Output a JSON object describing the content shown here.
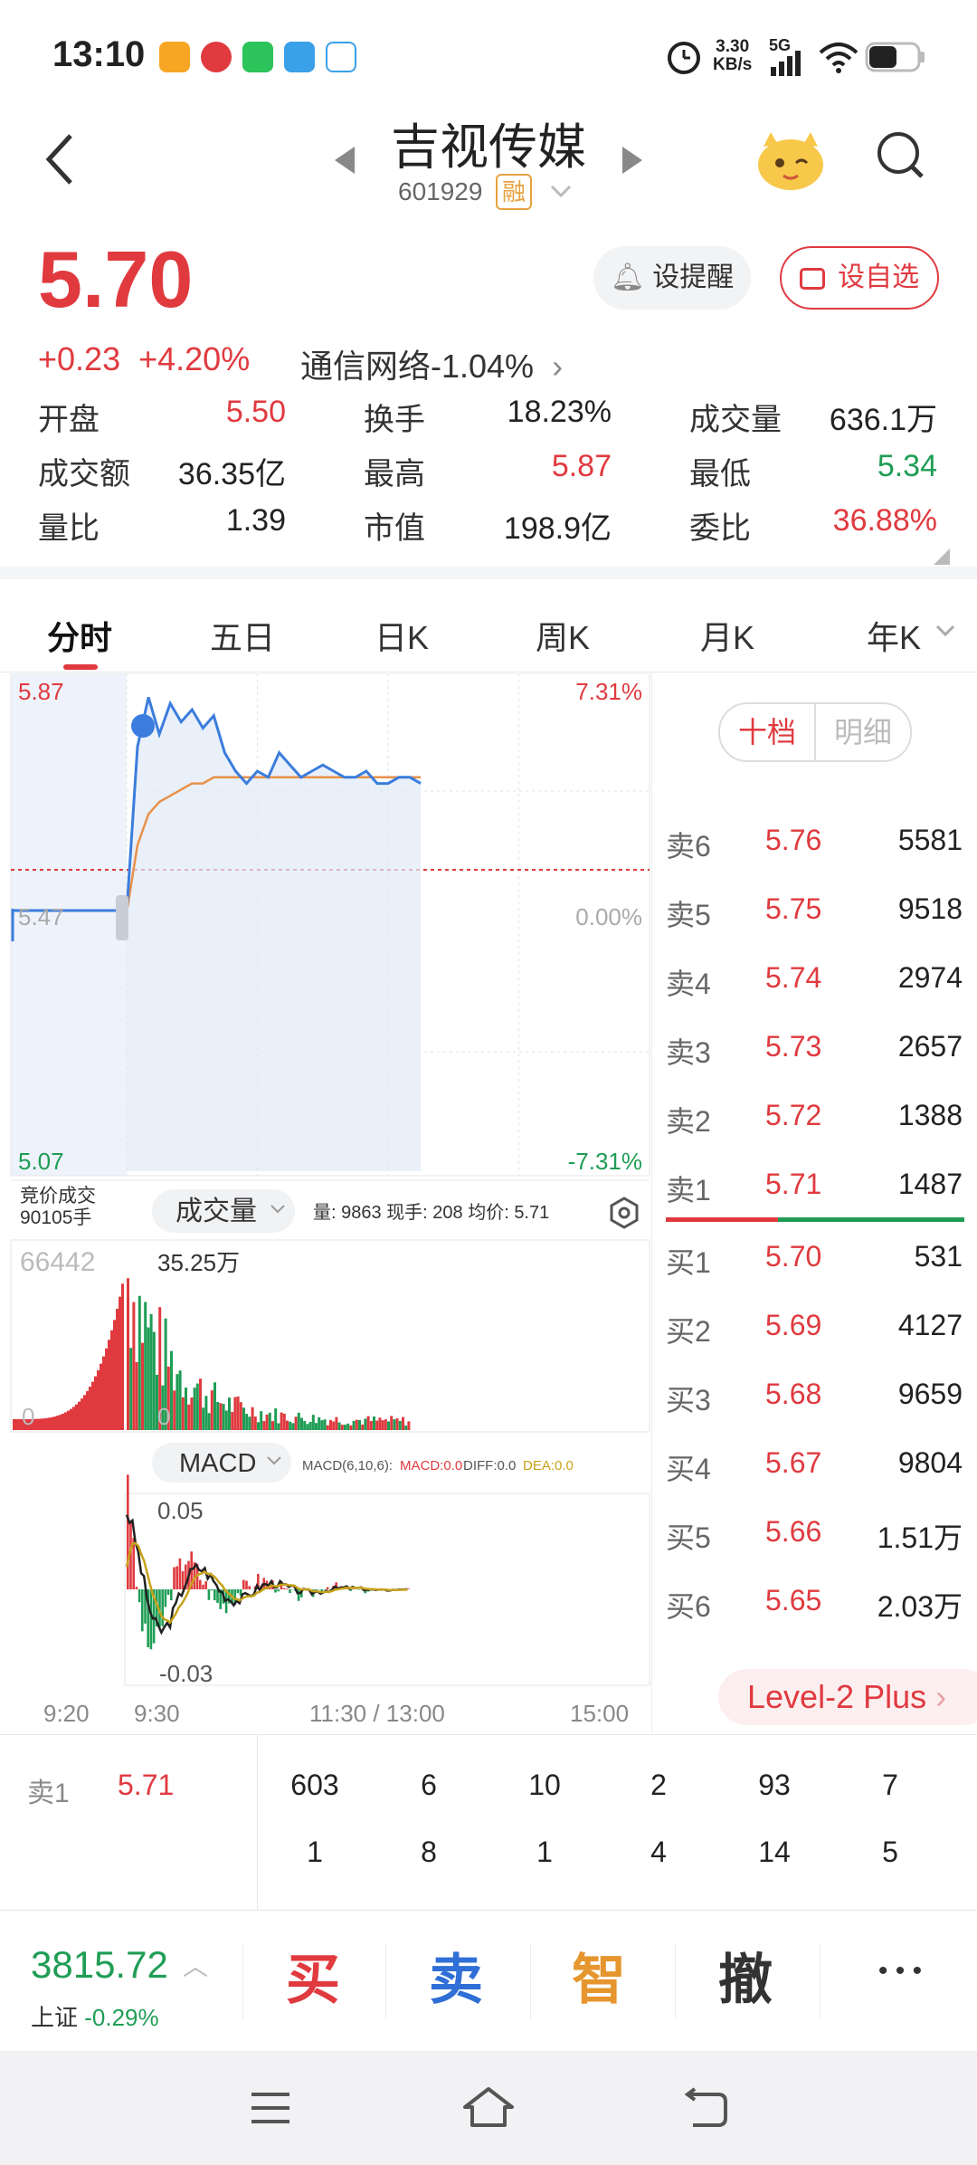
{
  "status_bar": {
    "time": "13:10",
    "net_speed_value": "3.30",
    "net_speed_unit": "KB/s",
    "network": "5G"
  },
  "header": {
    "stock_name": "吉视传媒",
    "stock_code": "601929",
    "margin_badge": "融"
  },
  "quote": {
    "price": "5.70",
    "change": "+0.23",
    "change_pct": "+4.20%",
    "sector": "通信网络-1.04%",
    "alert_label": "设提醒",
    "watch_label": "设自选",
    "stats": [
      {
        "label": "开盘",
        "value": "5.50",
        "color": "red"
      },
      {
        "label": "换手",
        "value": "18.23%",
        "color": "black"
      },
      {
        "label": "成交量",
        "value": "636.1万",
        "color": "black"
      },
      {
        "label": "成交额",
        "value": "36.35亿",
        "color": "black"
      },
      {
        "label": "最高",
        "value": "5.87",
        "color": "red"
      },
      {
        "label": "最低",
        "value": "5.34",
        "color": "green"
      },
      {
        "label": "量比",
        "value": "1.39",
        "color": "black"
      },
      {
        "label": "市值",
        "value": "198.9亿",
        "color": "black"
      },
      {
        "label": "委比",
        "value": "36.88%",
        "color": "red"
      }
    ]
  },
  "tabs": [
    "分时",
    "五日",
    "日K",
    "周K",
    "月K",
    "年K"
  ],
  "chart": {
    "price_top": "5.87",
    "price_mid": "5.47",
    "price_bottom": "5.07",
    "pct_top": "7.31%",
    "pct_mid": "0.00%",
    "pct_bottom": "-7.31%",
    "auction_label_1": "竞价成交",
    "auction_label_2": "90105手",
    "volume_selector": "成交量",
    "volume_info": "量: 9863  现手: 208  均价: 5.71",
    "auction_volume": "66442",
    "volume_max": "35.25万",
    "volume_zero_left": "0",
    "volume_zero_right": "0",
    "macd_selector": "MACD",
    "macd_params": "MACD(6,10,6):",
    "macd_value": "MACD:0.0",
    "diff_value": "DIFF:0.0",
    "dea_value": "DEA:0.0",
    "macd_top": "0.05",
    "macd_bottom": "-0.03",
    "x_labels": [
      "9:20",
      "9:30",
      "11:30 / 13:00",
      "15:00"
    ]
  },
  "chart_data": {
    "type": "line",
    "title": "",
    "prev_close": 5.47,
    "ylim": [
      5.07,
      5.87
    ],
    "x": [
      "9:30",
      "9:35",
      "9:40",
      "9:45",
      "9:50",
      "9:55",
      "10:00",
      "10:05",
      "10:10",
      "10:15",
      "10:20",
      "10:25",
      "10:30",
      "10:35",
      "10:40",
      "10:45",
      "10:50",
      "10:55",
      "11:00",
      "11:05",
      "11:10",
      "11:15",
      "11:20",
      "11:25",
      "11:30",
      "13:00",
      "13:05",
      "13:10"
    ],
    "series": [
      {
        "values": [
          5.49,
          5.76,
          5.84,
          5.78,
          5.83,
          5.8,
          5.82,
          5.79,
          5.81,
          5.75,
          5.72,
          5.7,
          5.72,
          5.71,
          5.75,
          5.73,
          5.71,
          5.72,
          5.73,
          5.72,
          5.71,
          5.71,
          5.72,
          5.7,
          5.7,
          5.71,
          5.71,
          5.7
        ]
      },
      {
        "values": [
          5.49,
          5.6,
          5.65,
          5.67,
          5.68,
          5.69,
          5.7,
          5.7,
          5.71,
          5.71,
          5.71,
          5.71,
          5.71,
          5.71,
          5.71,
          5.71,
          5.71,
          5.71,
          5.71,
          5.71,
          5.71,
          5.71,
          5.71,
          5.71,
          5.71,
          5.71,
          5.71,
          5.71
        ]
      }
    ]
  },
  "order_book": {
    "toggle_left": "十档",
    "toggle_right": "明细",
    "asks": [
      {
        "label": "卖6",
        "price": "5.76",
        "volume": "5581"
      },
      {
        "label": "卖5",
        "price": "5.75",
        "volume": "9518"
      },
      {
        "label": "卖4",
        "price": "5.74",
        "volume": "2974"
      },
      {
        "label": "卖3",
        "price": "5.73",
        "volume": "2657"
      },
      {
        "label": "卖2",
        "price": "5.72",
        "volume": "1388"
      },
      {
        "label": "卖1",
        "price": "5.71",
        "volume": "1487"
      }
    ],
    "bids": [
      {
        "label": "买1",
        "price": "5.70",
        "volume": "531"
      },
      {
        "label": "买2",
        "price": "5.69",
        "volume": "4127"
      },
      {
        "label": "买3",
        "price": "5.68",
        "volume": "9659"
      },
      {
        "label": "买4",
        "price": "5.67",
        "volume": "9804"
      },
      {
        "label": "买5",
        "price": "5.66",
        "volume": "1.51万"
      },
      {
        "label": "买6",
        "price": "5.65",
        "volume": "2.03万"
      }
    ],
    "level2": "Level-2 Plus"
  },
  "queue": {
    "label": "卖1",
    "price": "5.71",
    "row1": [
      "603",
      "6",
      "10",
      "2",
      "93",
      "7"
    ],
    "row2": [
      "1",
      "8",
      "1",
      "4",
      "14",
      "5"
    ]
  },
  "bottom": {
    "index_value": "3815.72",
    "index_name": "上证",
    "index_change": "-0.29%",
    "buy": "买",
    "sell": "卖",
    "smart": "智",
    "cancel": "撤",
    "more": "• • •"
  },
  "colors": {
    "up": "#e03a3f",
    "down": "#1f9d55",
    "price_line": "#3b7ddd",
    "avg_line": "#e8914a"
  }
}
